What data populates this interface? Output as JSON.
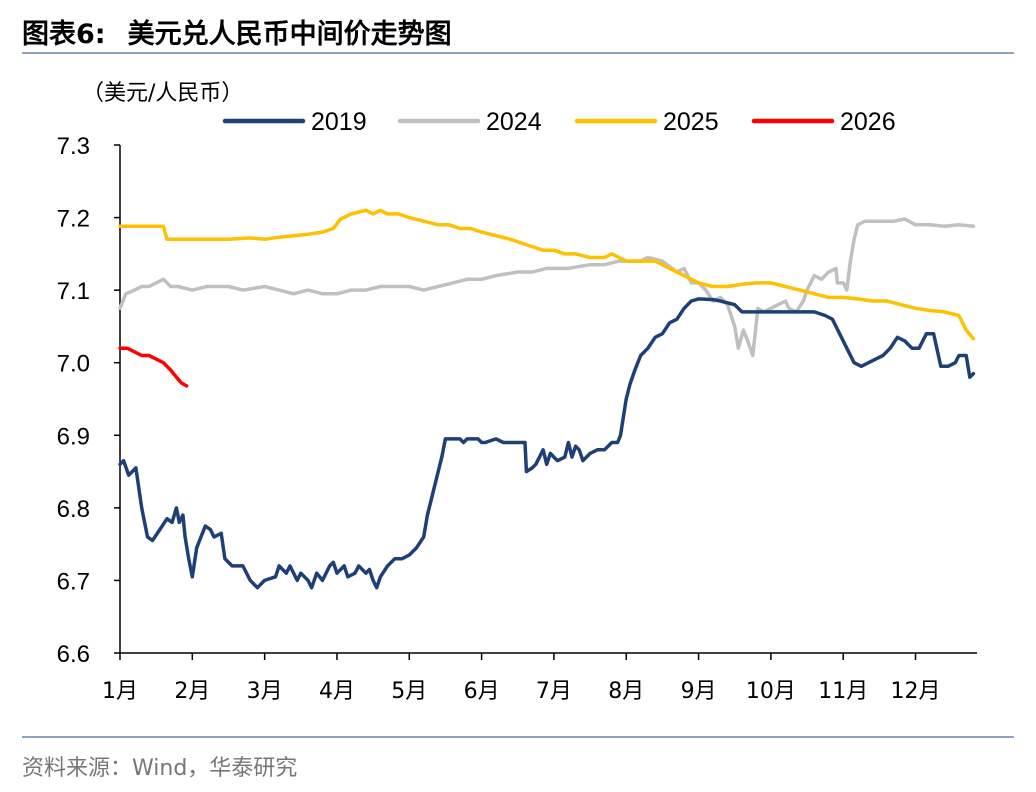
{
  "figure": {
    "number": "图表6:",
    "title": "美元兑人民币中间价走势图",
    "source": "资料来源：Wind，华泰研究"
  },
  "chart_data": {
    "type": "line",
    "ylabel": "（美元/人民币）",
    "ylim": [
      6.6,
      7.3
    ],
    "yticks": [
      6.6,
      6.7,
      6.8,
      6.9,
      7.0,
      7.1,
      7.2,
      7.3
    ],
    "ytick_labels": [
      "6.6",
      "6.7",
      "6.8",
      "6.9",
      "7.0",
      "7.1",
      "7.2",
      "7.3"
    ],
    "xlim": [
      1,
      12.85
    ],
    "xticks": [
      1,
      2,
      3,
      4,
      5,
      6,
      7,
      8,
      9,
      10,
      11,
      12
    ],
    "xtick_labels": [
      "1月",
      "2月",
      "3月",
      "4月",
      "5月",
      "6月",
      "7月",
      "8月",
      "9月",
      "10月",
      "11月",
      "12月"
    ],
    "grid": false,
    "legend_position": "top",
    "series": [
      {
        "name": "2019",
        "color": "#1f3f77",
        "points": [
          [
            1.0,
            6.86
          ],
          [
            1.05,
            6.865
          ],
          [
            1.12,
            6.845
          ],
          [
            1.22,
            6.855
          ],
          [
            1.3,
            6.8
          ],
          [
            1.38,
            6.76
          ],
          [
            1.45,
            6.755
          ],
          [
            1.55,
            6.77
          ],
          [
            1.65,
            6.785
          ],
          [
            1.72,
            6.78
          ],
          [
            1.78,
            6.8
          ],
          [
            1.82,
            6.78
          ],
          [
            1.87,
            6.79
          ],
          [
            1.9,
            6.76
          ],
          [
            1.95,
            6.73
          ],
          [
            2.0,
            6.705
          ],
          [
            2.06,
            6.745
          ],
          [
            2.12,
            6.76
          ],
          [
            2.18,
            6.775
          ],
          [
            2.25,
            6.77
          ],
          [
            2.3,
            6.76
          ],
          [
            2.4,
            6.765
          ],
          [
            2.45,
            6.73
          ],
          [
            2.55,
            6.72
          ],
          [
            2.7,
            6.72
          ],
          [
            2.8,
            6.7
          ],
          [
            2.9,
            6.69
          ],
          [
            3.0,
            6.7
          ],
          [
            3.15,
            6.705
          ],
          [
            3.2,
            6.72
          ],
          [
            3.3,
            6.71
          ],
          [
            3.35,
            6.72
          ],
          [
            3.45,
            6.7
          ],
          [
            3.5,
            6.71
          ],
          [
            3.6,
            6.7
          ],
          [
            3.65,
            6.69
          ],
          [
            3.72,
            6.71
          ],
          [
            3.8,
            6.7
          ],
          [
            3.9,
            6.72
          ],
          [
            3.95,
            6.725
          ],
          [
            4.0,
            6.71
          ],
          [
            4.1,
            6.72
          ],
          [
            4.15,
            6.705
          ],
          [
            4.25,
            6.71
          ],
          [
            4.3,
            6.72
          ],
          [
            4.4,
            6.71
          ],
          [
            4.45,
            6.715
          ],
          [
            4.5,
            6.7
          ],
          [
            4.55,
            6.69
          ],
          [
            4.6,
            6.705
          ],
          [
            4.7,
            6.72
          ],
          [
            4.8,
            6.73
          ],
          [
            4.9,
            6.73
          ],
          [
            5.0,
            6.735
          ],
          [
            5.1,
            6.745
          ],
          [
            5.2,
            6.76
          ],
          [
            5.25,
            6.79
          ],
          [
            5.35,
            6.83
          ],
          [
            5.45,
            6.87
          ],
          [
            5.5,
            6.895
          ],
          [
            5.6,
            6.895
          ],
          [
            5.7,
            6.895
          ],
          [
            5.75,
            6.89
          ],
          [
            5.8,
            6.895
          ],
          [
            5.95,
            6.895
          ],
          [
            6.0,
            6.89
          ],
          [
            6.05,
            6.89
          ],
          [
            6.2,
            6.895
          ],
          [
            6.3,
            6.89
          ],
          [
            6.4,
            6.89
          ],
          [
            6.6,
            6.89
          ],
          [
            6.62,
            6.85
          ],
          [
            6.7,
            6.855
          ],
          [
            6.75,
            6.86
          ],
          [
            6.8,
            6.87
          ],
          [
            6.85,
            6.88
          ],
          [
            6.9,
            6.86
          ],
          [
            6.95,
            6.875
          ],
          [
            7.0,
            6.87
          ],
          [
            7.05,
            6.865
          ],
          [
            7.15,
            6.87
          ],
          [
            7.2,
            6.89
          ],
          [
            7.25,
            6.87
          ],
          [
            7.3,
            6.885
          ],
          [
            7.35,
            6.88
          ],
          [
            7.4,
            6.865
          ],
          [
            7.5,
            6.875
          ],
          [
            7.6,
            6.88
          ],
          [
            7.7,
            6.88
          ],
          [
            7.8,
            6.89
          ],
          [
            7.88,
            6.89
          ],
          [
            7.92,
            6.9
          ],
          [
            8.0,
            6.95
          ],
          [
            8.05,
            6.97
          ],
          [
            8.12,
            6.99
          ],
          [
            8.2,
            7.01
          ],
          [
            8.3,
            7.02
          ],
          [
            8.4,
            7.035
          ],
          [
            8.5,
            7.04
          ],
          [
            8.6,
            7.055
          ],
          [
            8.7,
            7.06
          ],
          [
            8.8,
            7.075
          ],
          [
            8.9,
            7.085
          ],
          [
            9.0,
            7.088
          ],
          [
            9.2,
            7.087
          ],
          [
            9.3,
            7.085
          ],
          [
            9.5,
            7.08
          ],
          [
            9.6,
            7.07
          ],
          [
            9.8,
            7.07
          ],
          [
            10.0,
            7.07
          ],
          [
            10.2,
            7.07
          ],
          [
            10.4,
            7.07
          ],
          [
            10.6,
            7.07
          ],
          [
            10.75,
            7.065
          ],
          [
            10.85,
            7.06
          ],
          [
            10.95,
            7.04
          ],
          [
            11.05,
            7.02
          ],
          [
            11.15,
            7.0
          ],
          [
            11.25,
            6.995
          ],
          [
            11.35,
            7.0
          ],
          [
            11.45,
            7.005
          ],
          [
            11.55,
            7.01
          ],
          [
            11.65,
            7.02
          ],
          [
            11.75,
            7.035
          ],
          [
            11.85,
            7.03
          ],
          [
            11.95,
            7.02
          ],
          [
            12.05,
            7.02
          ],
          [
            12.15,
            7.04
          ],
          [
            12.25,
            7.04
          ],
          [
            12.35,
            6.995
          ],
          [
            12.45,
            6.995
          ],
          [
            12.55,
            7.0
          ],
          [
            12.6,
            7.01
          ],
          [
            12.7,
            7.01
          ],
          [
            12.75,
            6.98
          ],
          [
            12.8,
            6.985
          ]
        ]
      },
      {
        "name": "2024",
        "color": "#c0c0c0",
        "points": [
          [
            1.0,
            7.075
          ],
          [
            1.08,
            7.095
          ],
          [
            1.2,
            7.1
          ],
          [
            1.3,
            7.105
          ],
          [
            1.4,
            7.105
          ],
          [
            1.5,
            7.11
          ],
          [
            1.6,
            7.115
          ],
          [
            1.7,
            7.105
          ],
          [
            1.8,
            7.105
          ],
          [
            2.0,
            7.1
          ],
          [
            2.2,
            7.105
          ],
          [
            2.5,
            7.105
          ],
          [
            2.7,
            7.1
          ],
          [
            3.0,
            7.105
          ],
          [
            3.2,
            7.1
          ],
          [
            3.4,
            7.095
          ],
          [
            3.6,
            7.1
          ],
          [
            3.8,
            7.095
          ],
          [
            4.0,
            7.095
          ],
          [
            4.2,
            7.1
          ],
          [
            4.4,
            7.1
          ],
          [
            4.6,
            7.105
          ],
          [
            5.0,
            7.105
          ],
          [
            5.2,
            7.1
          ],
          [
            5.4,
            7.105
          ],
          [
            5.6,
            7.11
          ],
          [
            5.8,
            7.115
          ],
          [
            6.0,
            7.115
          ],
          [
            6.2,
            7.12
          ],
          [
            6.5,
            7.125
          ],
          [
            6.7,
            7.125
          ],
          [
            6.9,
            7.13
          ],
          [
            7.2,
            7.13
          ],
          [
            7.5,
            7.135
          ],
          [
            7.7,
            7.135
          ],
          [
            7.9,
            7.14
          ],
          [
            8.0,
            7.14
          ],
          [
            8.2,
            7.14
          ],
          [
            8.3,
            7.145
          ],
          [
            8.5,
            7.14
          ],
          [
            8.7,
            7.125
          ],
          [
            8.8,
            7.13
          ],
          [
            8.9,
            7.11
          ],
          [
            9.0,
            7.11
          ],
          [
            9.1,
            7.1
          ],
          [
            9.2,
            7.085
          ],
          [
            9.3,
            7.09
          ],
          [
            9.4,
            7.08
          ],
          [
            9.5,
            7.05
          ],
          [
            9.55,
            7.02
          ],
          [
            9.62,
            7.045
          ],
          [
            9.68,
            7.03
          ],
          [
            9.75,
            7.01
          ],
          [
            9.82,
            7.075
          ],
          [
            9.9,
            7.07
          ],
          [
            10.0,
            7.075
          ],
          [
            10.1,
            7.08
          ],
          [
            10.2,
            7.085
          ],
          [
            10.25,
            7.075
          ],
          [
            10.35,
            7.07
          ],
          [
            10.45,
            7.085
          ],
          [
            10.5,
            7.1
          ],
          [
            10.55,
            7.11
          ],
          [
            10.6,
            7.12
          ],
          [
            10.7,
            7.115
          ],
          [
            10.8,
            7.125
          ],
          [
            10.9,
            7.13
          ],
          [
            10.92,
            7.11
          ],
          [
            11.0,
            7.11
          ],
          [
            11.05,
            7.1
          ],
          [
            11.1,
            7.14
          ],
          [
            11.15,
            7.17
          ],
          [
            11.2,
            7.19
          ],
          [
            11.3,
            7.195
          ],
          [
            11.5,
            7.195
          ],
          [
            11.7,
            7.195
          ],
          [
            11.85,
            7.198
          ],
          [
            12.0,
            7.19
          ],
          [
            12.2,
            7.19
          ],
          [
            12.4,
            7.188
          ],
          [
            12.6,
            7.19
          ],
          [
            12.8,
            7.188
          ]
        ]
      },
      {
        "name": "2025",
        "color": "#ffc000",
        "points": [
          [
            1.0,
            7.188
          ],
          [
            1.6,
            7.188
          ],
          [
            1.65,
            7.17
          ],
          [
            2.0,
            7.17
          ],
          [
            2.5,
            7.17
          ],
          [
            2.8,
            7.172
          ],
          [
            3.0,
            7.17
          ],
          [
            3.2,
            7.173
          ],
          [
            3.4,
            7.175
          ],
          [
            3.6,
            7.177
          ],
          [
            3.8,
            7.18
          ],
          [
            3.95,
            7.185
          ],
          [
            4.05,
            7.198
          ],
          [
            4.2,
            7.205
          ],
          [
            4.4,
            7.21
          ],
          [
            4.5,
            7.205
          ],
          [
            4.6,
            7.21
          ],
          [
            4.7,
            7.205
          ],
          [
            4.85,
            7.205
          ],
          [
            5.0,
            7.2
          ],
          [
            5.2,
            7.195
          ],
          [
            5.4,
            7.19
          ],
          [
            5.55,
            7.19
          ],
          [
            5.7,
            7.185
          ],
          [
            5.85,
            7.185
          ],
          [
            6.0,
            7.18
          ],
          [
            6.2,
            7.175
          ],
          [
            6.4,
            7.17
          ],
          [
            6.55,
            7.165
          ],
          [
            6.7,
            7.16
          ],
          [
            6.85,
            7.155
          ],
          [
            7.0,
            7.155
          ],
          [
            7.15,
            7.15
          ],
          [
            7.3,
            7.15
          ],
          [
            7.5,
            7.145
          ],
          [
            7.7,
            7.145
          ],
          [
            7.8,
            7.15
          ],
          [
            8.0,
            7.14
          ],
          [
            8.2,
            7.14
          ],
          [
            8.4,
            7.14
          ],
          [
            8.6,
            7.13
          ],
          [
            8.8,
            7.12
          ],
          [
            9.0,
            7.11
          ],
          [
            9.2,
            7.105
          ],
          [
            9.4,
            7.105
          ],
          [
            9.6,
            7.108
          ],
          [
            9.8,
            7.11
          ],
          [
            10.0,
            7.11
          ],
          [
            10.2,
            7.105
          ],
          [
            10.4,
            7.1
          ],
          [
            10.6,
            7.095
          ],
          [
            10.8,
            7.09
          ],
          [
            11.0,
            7.09
          ],
          [
            11.2,
            7.088
          ],
          [
            11.4,
            7.085
          ],
          [
            11.6,
            7.085
          ],
          [
            11.8,
            7.08
          ],
          [
            12.0,
            7.075
          ],
          [
            12.2,
            7.072
          ],
          [
            12.4,
            7.07
          ],
          [
            12.6,
            7.065
          ],
          [
            12.7,
            7.045
          ],
          [
            12.8,
            7.033
          ]
        ]
      },
      {
        "name": "2026",
        "color": "#ff0000",
        "points": [
          [
            1.0,
            7.02
          ],
          [
            1.1,
            7.02
          ],
          [
            1.2,
            7.015
          ],
          [
            1.3,
            7.01
          ],
          [
            1.4,
            7.01
          ],
          [
            1.5,
            7.005
          ],
          [
            1.6,
            7.0
          ],
          [
            1.7,
            6.99
          ],
          [
            1.78,
            6.98
          ],
          [
            1.85,
            6.972
          ],
          [
            1.92,
            6.968
          ]
        ]
      }
    ]
  }
}
